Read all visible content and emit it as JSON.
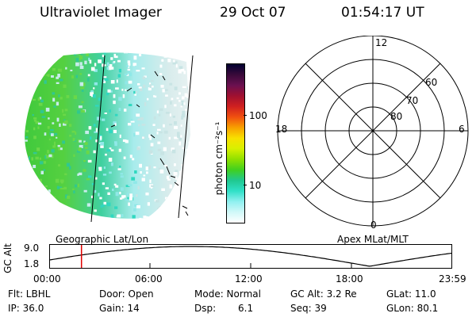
{
  "header": {
    "title": "Ultraviolet Imager",
    "date": "29 Oct 07",
    "time": "01:54:17 UT"
  },
  "colorbar": {
    "label": "photon cm⁻²s⁻¹",
    "ticks": [
      "100",
      "10"
    ],
    "colors": [
      "#000030",
      "#3a0a3a",
      "#6a1050",
      "#a01030",
      "#d02020",
      "#f05010",
      "#f8a000",
      "#f8e000",
      "#d8f000",
      "#90e000",
      "#40d020",
      "#20c890",
      "#30e0c8",
      "#90f0f0",
      "#d0f8f8",
      "#ffffff"
    ]
  },
  "polar": {
    "labels": [
      "12",
      "60",
      "70",
      "80",
      "18",
      "6",
      "0"
    ]
  },
  "altitude_plot": {
    "left_label": "Geographic Lat/Lon",
    "right_label": "Apex MLat/MLT",
    "ylabel": "GC Alt",
    "ytick_top": "9.0",
    "ytick_bottom": "1.8",
    "xticks": [
      "00:00",
      "06:00",
      "12:00",
      "18:00",
      "23:59"
    ],
    "marker_time": "01:54:17"
  },
  "info": {
    "flt": "Flt: LBHL",
    "ip": "IP: 36.0",
    "door": "Door: Open",
    "gain": "Gain: 14",
    "mode": "Mode: Normal",
    "dsp": "Dsp:",
    "dsp_val": "6.1",
    "gcalt": "GC Alt: 3.2 Re",
    "seq": "Seq: 39",
    "glat": "GLat: 11.0",
    "glon": "GLon: 80.1"
  }
}
